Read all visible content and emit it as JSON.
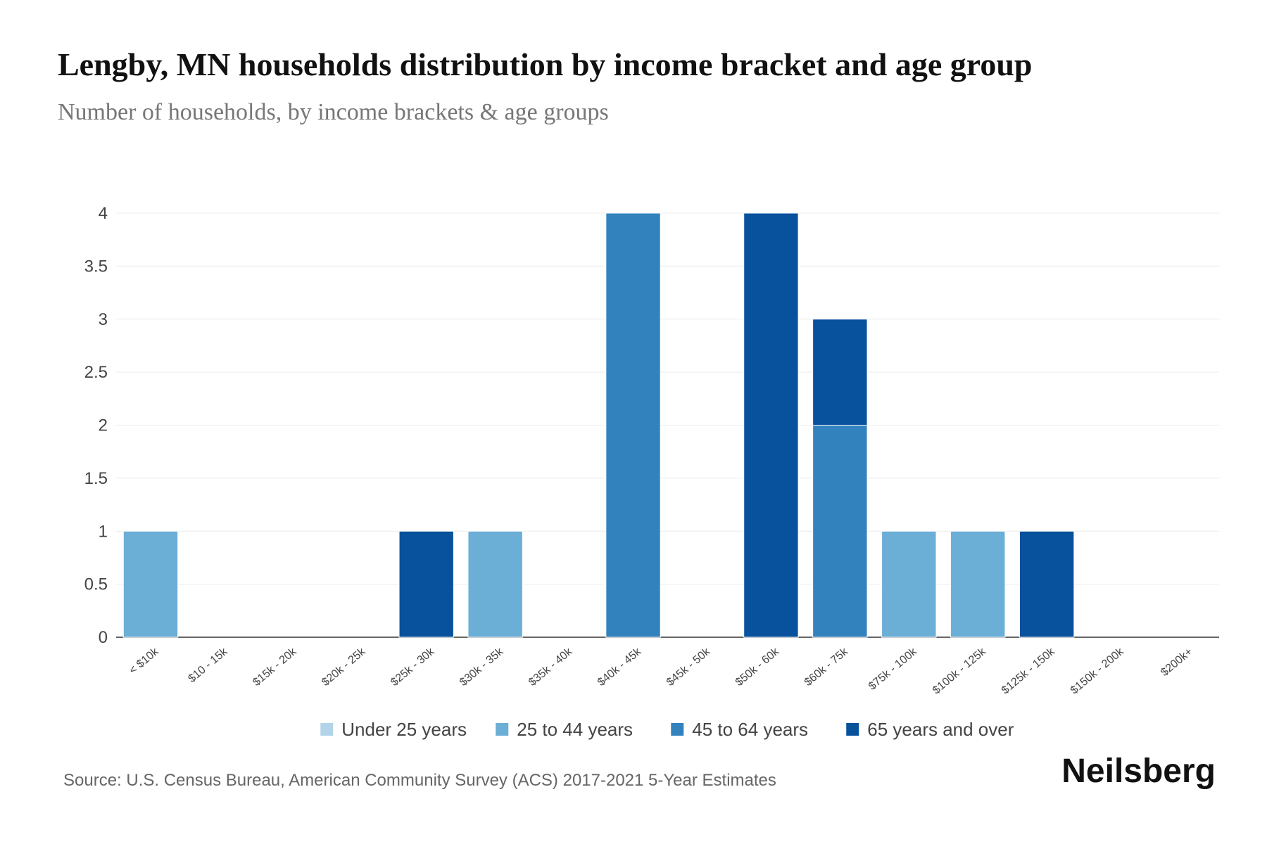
{
  "chart_data": {
    "type": "stacked_bar",
    "title": "Lengby, MN households distribution by income bracket and age group",
    "subtitle": "Number of households, by income brackets & age groups",
    "categories": [
      "< $10k",
      "$10 - 15k",
      "$15k - 20k",
      "$20k - 25k",
      "$25k - 30k",
      "$30k - 35k",
      "$35k - 40k",
      "$40k - 45k",
      "$45k - 50k",
      "$50k - 60k",
      "$60k - 75k",
      "$75k - 100k",
      "$100k - 125k",
      "$125k - 150k",
      "$150k - 200k",
      "$200k+"
    ],
    "series": [
      {
        "name": "Under 25 years",
        "color": "#b3d4e8",
        "values": [
          0,
          0,
          0,
          0,
          0,
          0,
          0,
          0,
          0,
          0,
          0,
          0,
          0,
          0,
          0,
          0
        ]
      },
      {
        "name": "25 to 44 years",
        "color": "#6baed6",
        "values": [
          1,
          0,
          0,
          0,
          0,
          1,
          0,
          0,
          0,
          0,
          0,
          1,
          1,
          0,
          0,
          0
        ]
      },
      {
        "name": "45 to 64 years",
        "color": "#3182bd",
        "values": [
          0,
          0,
          0,
          0,
          0,
          0,
          0,
          4,
          0,
          0,
          2,
          0,
          0,
          0,
          0,
          0
        ]
      },
      {
        "name": "65 years and over",
        "color": "#08519c",
        "values": [
          0,
          0,
          0,
          0,
          1,
          0,
          0,
          0,
          0,
          4,
          1,
          0,
          0,
          1,
          0,
          0
        ]
      }
    ],
    "ylim": [
      0,
      4
    ],
    "yticks": [
      0,
      0.5,
      1,
      1.5,
      2,
      2.5,
      3,
      3.5,
      4
    ],
    "grid": true,
    "legend": "bottom",
    "source": "Source: U.S. Census Bureau, American Community Survey (ACS) 2017-2021 5-Year Estimates",
    "brand": "Neilsberg"
  }
}
